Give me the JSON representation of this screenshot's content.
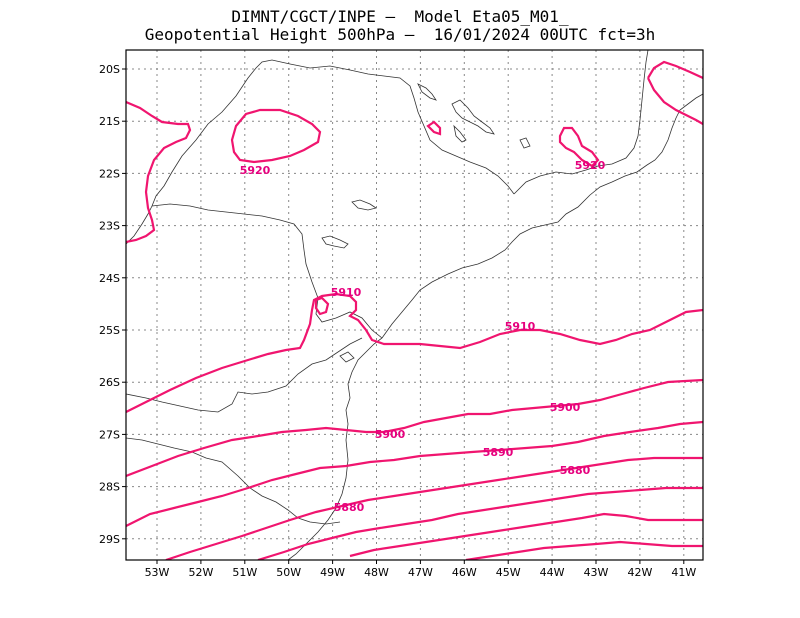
{
  "title": {
    "line1": "DIMNT/CGCT/INPE –  Model Eta05_M01_",
    "line2": "Geopotential Height 500hPa –  16/01/2024 00UTC fct=3h"
  },
  "axes": {
    "lat_labels": [
      "20S",
      "21S",
      "22S",
      "23S",
      "24S",
      "25S",
      "26S",
      "27S",
      "28S",
      "29S"
    ],
    "lon_labels": [
      "53W",
      "52W",
      "51W",
      "50W",
      "49W",
      "48W",
      "47W",
      "46W",
      "45W",
      "44W",
      "43W",
      "42W",
      "41W"
    ]
  },
  "contour_labels": [
    {
      "id": "c5920a",
      "text": "5920"
    },
    {
      "id": "c5920b",
      "text": "5920"
    },
    {
      "id": "c5910a",
      "text": "5910"
    },
    {
      "id": "c5910b",
      "text": "5910"
    },
    {
      "id": "c5900a",
      "text": "5900"
    },
    {
      "id": "c5900b",
      "text": "5900"
    },
    {
      "id": "c5890",
      "text": "5890"
    },
    {
      "id": "c5880a",
      "text": "5880"
    },
    {
      "id": "c5880b",
      "text": "5880"
    }
  ],
  "colors": {
    "contour": "#f0156f",
    "coastline": "#333333",
    "grid": "#888888"
  }
}
